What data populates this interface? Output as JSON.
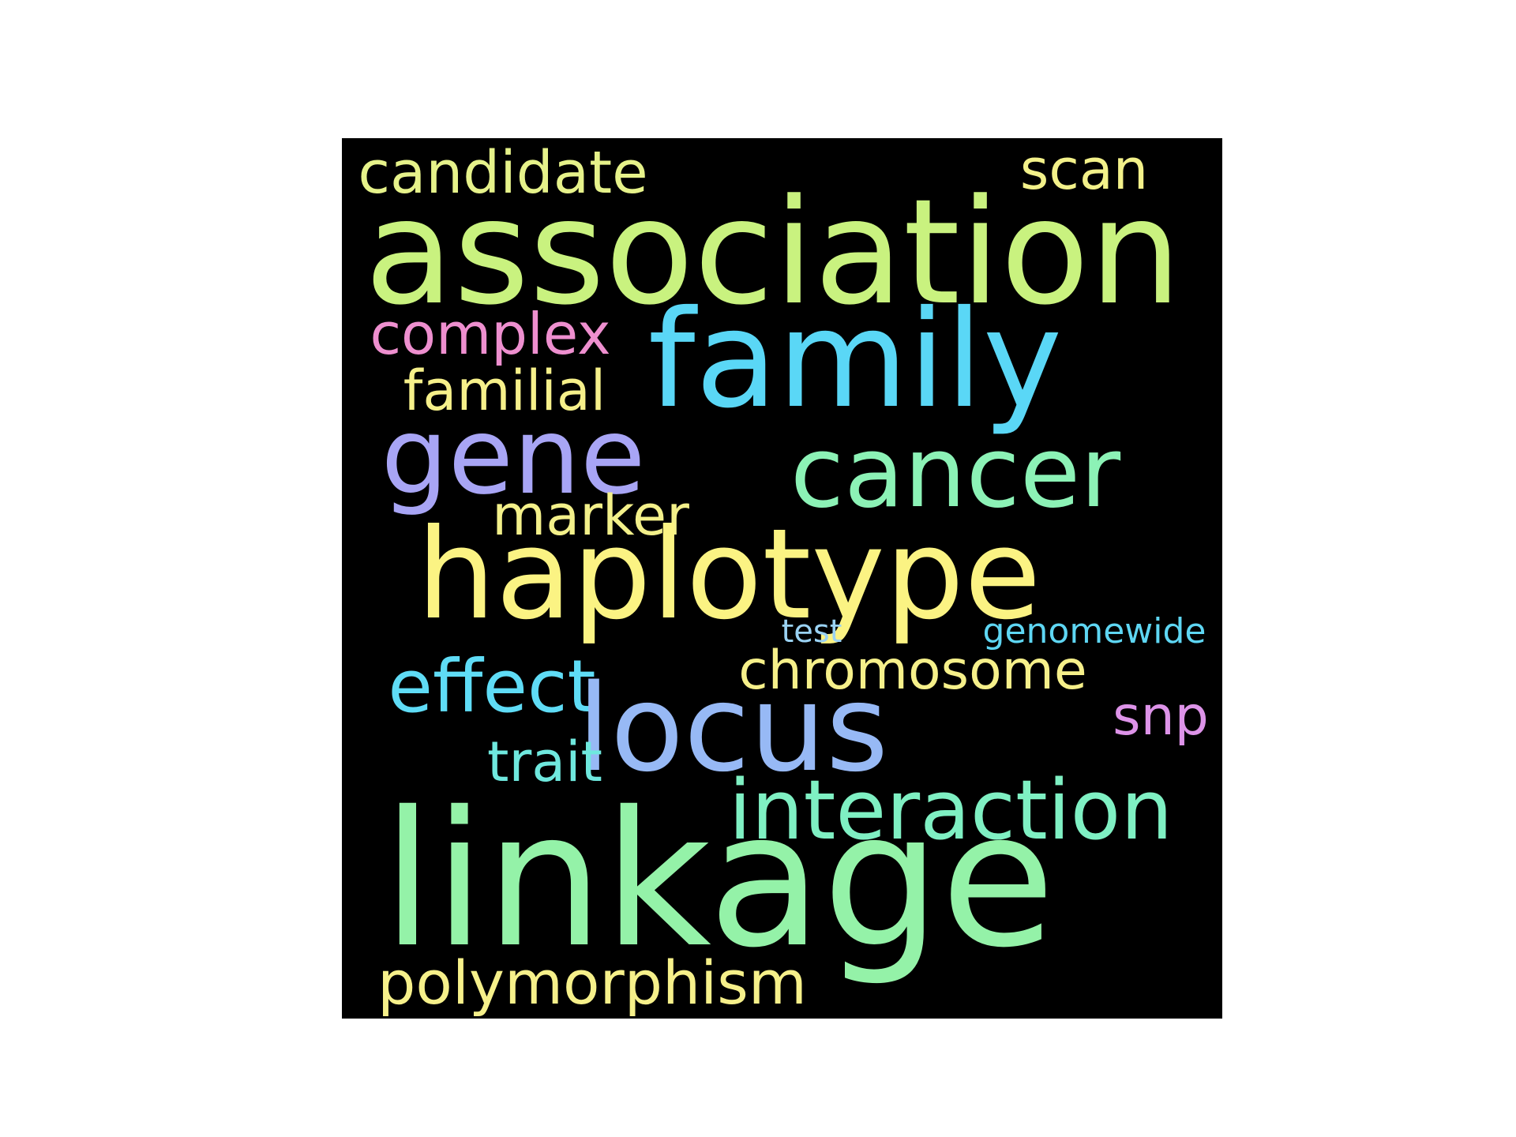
{
  "word_cloud": {
    "background": "#000000",
    "words": [
      {
        "key": "candidate",
        "text": "candidate",
        "color": "#e6f28a"
      },
      {
        "key": "scan",
        "text": "scan",
        "color": "#f3f18a"
      },
      {
        "key": "association",
        "text": "association",
        "color": "#c9f27f"
      },
      {
        "key": "complex",
        "text": "complex",
        "color": "#ee8fcf"
      },
      {
        "key": "family",
        "text": "family",
        "color": "#5ad7f6"
      },
      {
        "key": "familial",
        "text": "familial",
        "color": "#f6f08a"
      },
      {
        "key": "gene",
        "text": "gene",
        "color": "#a8a5f5"
      },
      {
        "key": "cancer",
        "text": "cancer",
        "color": "#8cf2b6"
      },
      {
        "key": "marker",
        "text": "marker",
        "color": "#f3f08a"
      },
      {
        "key": "haplotype",
        "text": "haplotype",
        "color": "#fbf383"
      },
      {
        "key": "test",
        "text": "test",
        "color": "#9ad2f3"
      },
      {
        "key": "genomewide",
        "text": "genomewide",
        "color": "#5ed6f3"
      },
      {
        "key": "chromosome",
        "text": "chromosome",
        "color": "#f6f08a"
      },
      {
        "key": "effect",
        "text": "effect",
        "color": "#5fdcf6"
      },
      {
        "key": "snp",
        "text": "snp",
        "color": "#dd93e8"
      },
      {
        "key": "locus",
        "text": "locus",
        "color": "#97b9f5"
      },
      {
        "key": "trait",
        "text": "trait",
        "color": "#6fe8de"
      },
      {
        "key": "interaction",
        "text": "interaction",
        "color": "#7ff0c3"
      },
      {
        "key": "linkage",
        "text": "linkage",
        "color": "#94f2a8"
      },
      {
        "key": "polymorphism",
        "text": "polymorphism",
        "color": "#f6f08a"
      }
    ]
  }
}
